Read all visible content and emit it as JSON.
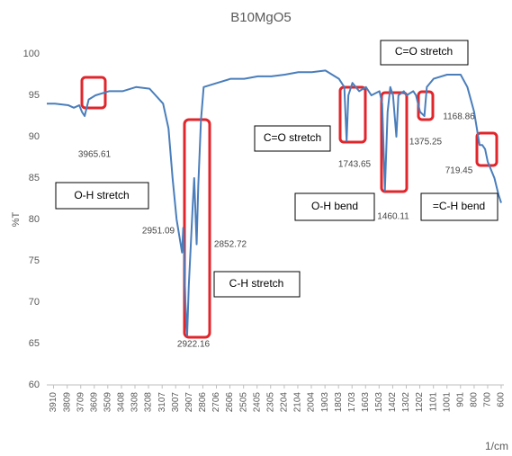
{
  "chart_data": {
    "type": "line",
    "title": "B10MgO5",
    "y_label": "%T",
    "x_label": "1/cm",
    "xlim": [
      3960,
      580
    ],
    "xticks": [
      3910,
      3809,
      3709,
      3609,
      3509,
      3408,
      3308,
      3208,
      3107,
      3007,
      2907,
      2806,
      2706,
      2606,
      2505,
      2405,
      2305,
      2204,
      2104,
      2004,
      1903,
      1803,
      1703,
      1603,
      1503,
      1402,
      1302,
      1202,
      1101,
      1001,
      901,
      800,
      700,
      600
    ],
    "ylim": [
      60,
      100
    ],
    "yticks": [
      60,
      65,
      70,
      75,
      80,
      85,
      90,
      95,
      100
    ],
    "grid": false,
    "series": [
      {
        "name": "B10MgO5",
        "color": "#4a7ebb",
        "x": [
          3960,
          3900,
          3800,
          3760,
          3720,
          3700,
          3680,
          3650,
          3600,
          3500,
          3400,
          3300,
          3200,
          3100,
          3060,
          3030,
          3000,
          2980,
          2960,
          2951,
          2935,
          2922,
          2910,
          2880,
          2870,
          2852,
          2840,
          2820,
          2800,
          2700,
          2600,
          2500,
          2400,
          2300,
          2200,
          2100,
          2000,
          1900,
          1850,
          1800,
          1760,
          1743,
          1730,
          1700,
          1650,
          1600,
          1560,
          1500,
          1480,
          1460,
          1440,
          1420,
          1400,
          1375,
          1360,
          1320,
          1300,
          1250,
          1230,
          1200,
          1168,
          1150,
          1100,
          1000,
          900,
          850,
          800,
          760,
          740,
          719,
          700,
          650,
          620,
          600
        ],
        "values": [
          94,
          94,
          93.8,
          93.5,
          93.8,
          93,
          92.5,
          94.5,
          95,
          95.5,
          95.5,
          96,
          95.8,
          94,
          91,
          85,
          80,
          78,
          76,
          79,
          70,
          66,
          72,
          82,
          85,
          77,
          84,
          92,
          96,
          96.5,
          97,
          97,
          97.3,
          97.3,
          97.5,
          97.8,
          97.8,
          98,
          97.5,
          97,
          96,
          89.5,
          95,
          96.5,
          95.5,
          96,
          95,
          95.5,
          94,
          83.5,
          93,
          96,
          95,
          90,
          95,
          95.5,
          95,
          95.5,
          95,
          93,
          92.5,
          96,
          97,
          97.5,
          97.5,
          96,
          93,
          89,
          89,
          88.5,
          87,
          85,
          83,
          82
        ]
      }
    ],
    "annotations": [
      "3965.61",
      "O-H stretch",
      "2951.09",
      "2852.72",
      "2922.16",
      "C-H stretch",
      "C=O stretch",
      "1743.65",
      "O-H bend",
      "1460.11",
      "1375.25",
      "1168.86",
      "C=O stretch",
      "719.45",
      "=C-H bend"
    ]
  }
}
